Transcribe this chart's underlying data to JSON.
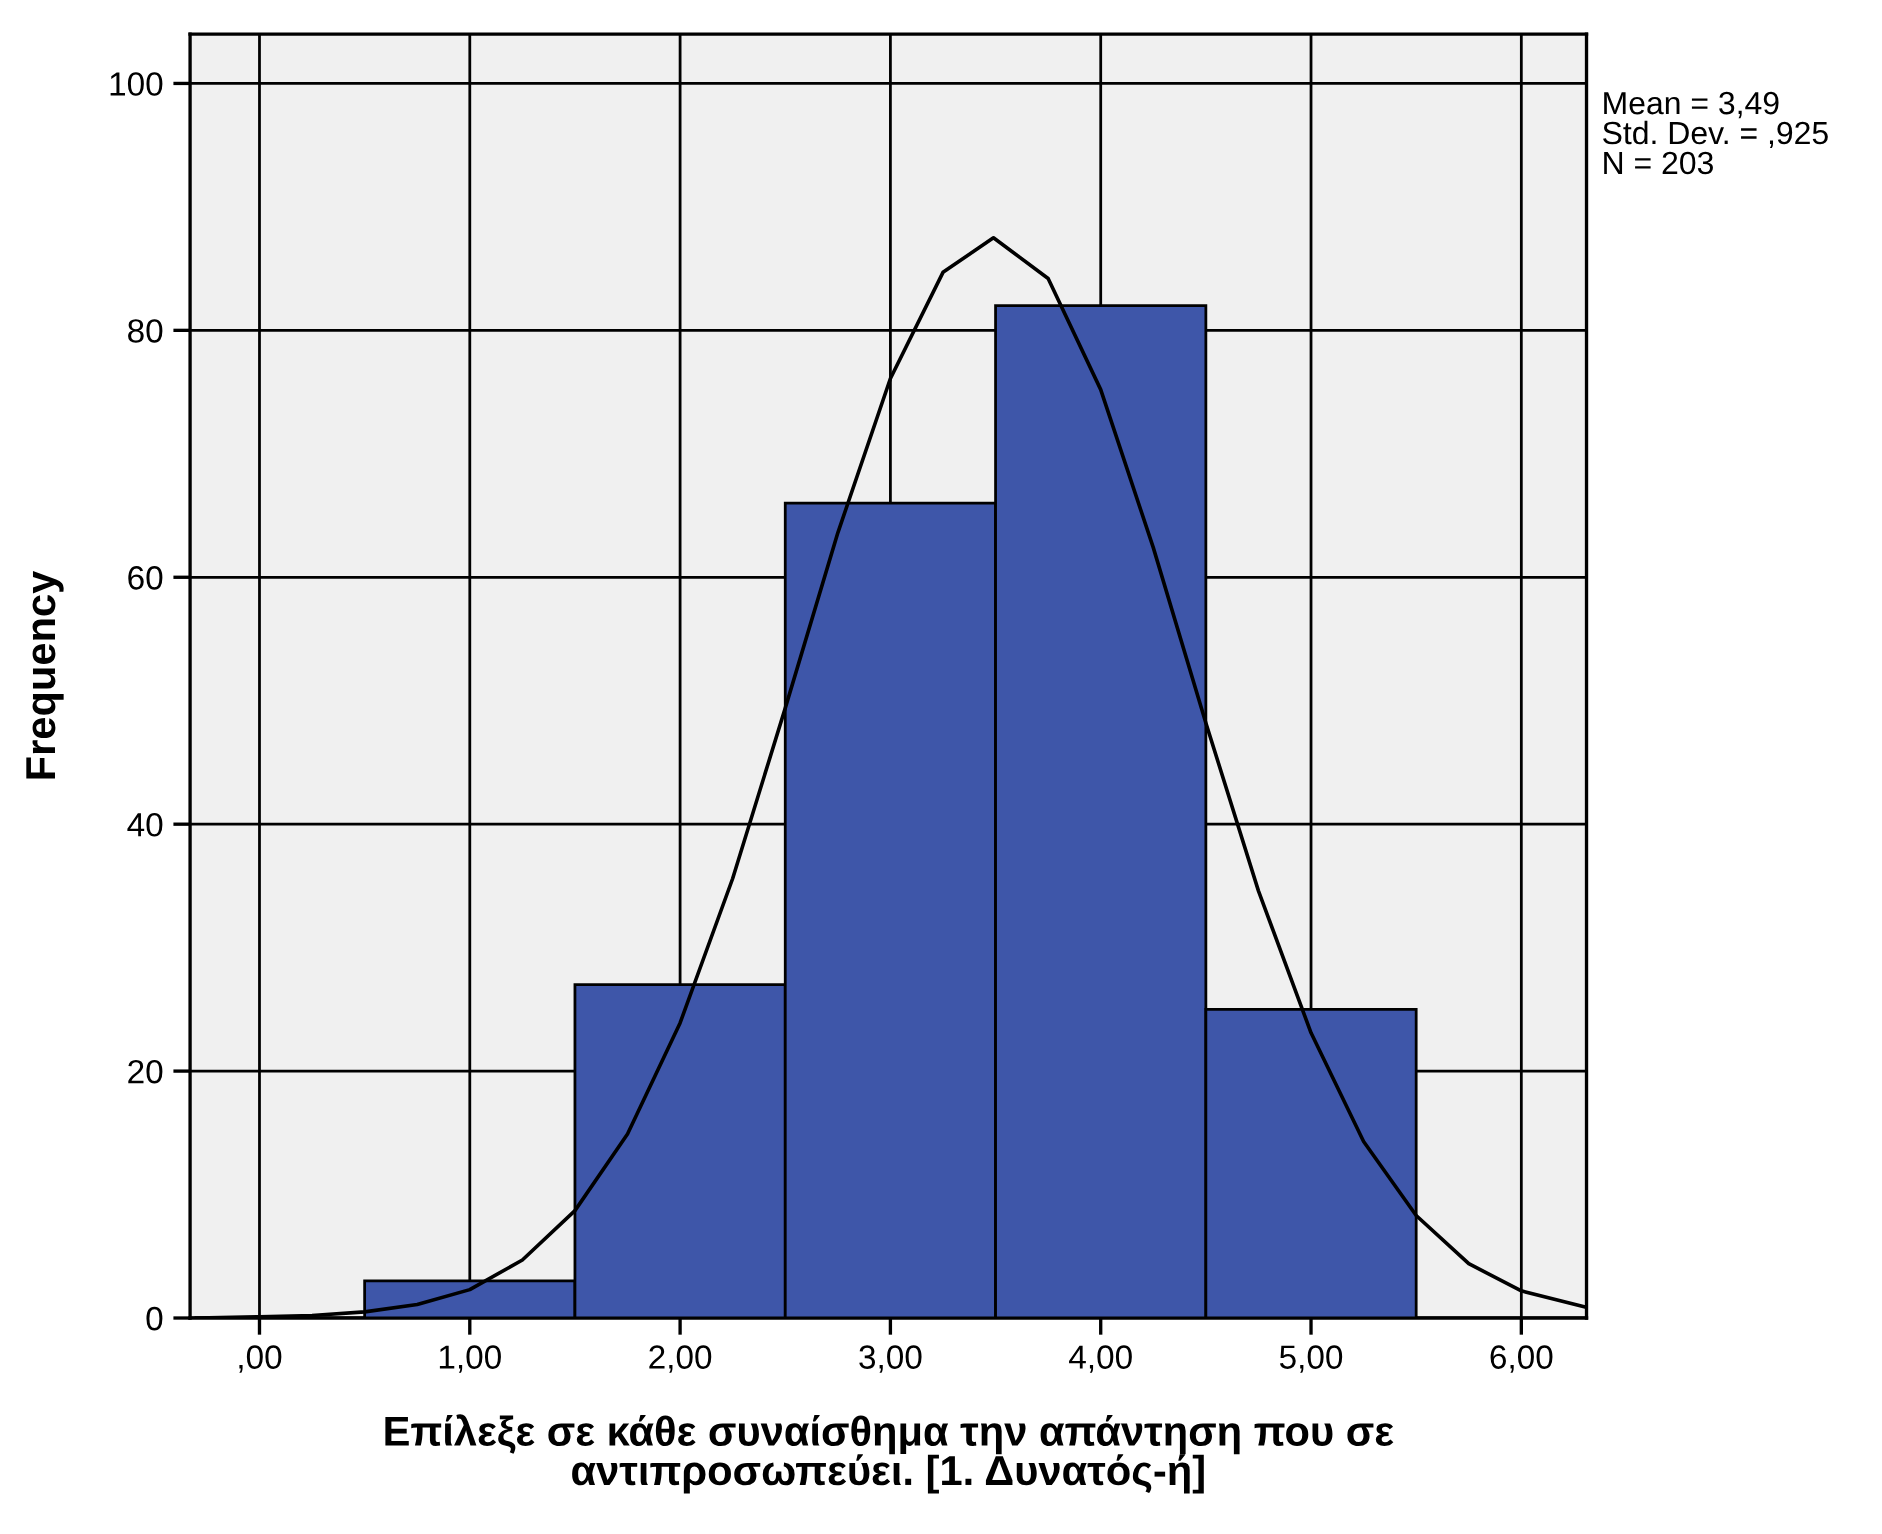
{
  "chart_data": {
    "type": "histogram",
    "xlabel": "Επίλεξε σε κάθε συναίσθημα την απάντηση που σε\nαντιπροσωπεύει. [1. Δυνατός-ή]",
    "ylabel": "Frequency",
    "bins": [
      0.5,
      1.5,
      2.5,
      3.5,
      4.5,
      5.5
    ],
    "values": [
      3,
      27,
      66,
      82,
      25
    ],
    "color": "#3e56a9",
    "series": [
      {
        "type": "line",
        "color": "#000000",
        "x": [
          -0.3,
          0,
          0.25,
          0.5,
          0.75,
          1.0,
          1.25,
          1.5,
          1.75,
          2.0,
          2.25,
          2.5,
          2.75,
          3.0,
          3.25,
          3.49,
          3.75,
          4.0,
          4.25,
          4.5,
          4.75,
          5.0,
          5.25,
          5.5,
          5.75,
          6.0,
          6.3
        ],
        "values": [
          0,
          0.1,
          0.2,
          0.5,
          1.1,
          2.3,
          4.7,
          8.7,
          14.9,
          23.9,
          35.6,
          49.4,
          63.6,
          76.1,
          84.7,
          87.5,
          84.2,
          75.2,
          62.4,
          48.2,
          34.6,
          23.1,
          14.3,
          8.3,
          4.4,
          2.2,
          0.9
        ]
      }
    ],
    "xlim": [
      -0.33,
      6.31
    ],
    "ylim": [
      0,
      104
    ],
    "xticks": [
      {
        "value": 0,
        "label": ",00"
      },
      {
        "value": 1,
        "label": "1,00"
      },
      {
        "value": 2,
        "label": "2,00"
      },
      {
        "value": 3,
        "label": "3,00"
      },
      {
        "value": 4,
        "label": "4,00"
      },
      {
        "value": 5,
        "label": "5,00"
      },
      {
        "value": 6,
        "label": "6,00"
      }
    ],
    "yticks": [
      0,
      20,
      40,
      60,
      80,
      100
    ],
    "grid": true,
    "annotations": [
      "Mean = 3,49",
      "Std. Dev. = ,925",
      "N = 203"
    ]
  }
}
